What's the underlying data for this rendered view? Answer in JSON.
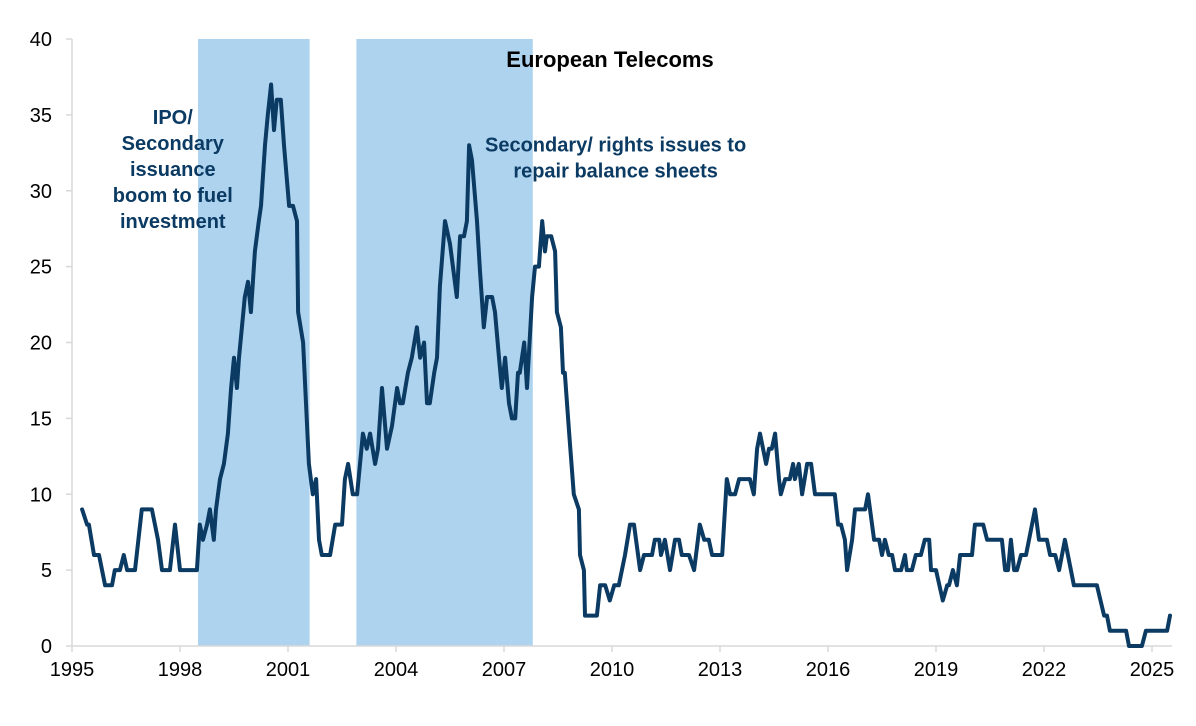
{
  "chart_data": {
    "type": "line",
    "title": "European Telecoms",
    "xlabel": "",
    "ylabel": "",
    "xlim": [
      1995,
      2025.5
    ],
    "ylim": [
      0,
      40
    ],
    "grid": false,
    "legend": "none",
    "x_ticks": [
      "1995",
      "1998",
      "2001",
      "2004",
      "2007",
      "2010",
      "2013",
      "2016",
      "2019",
      "2022",
      "2025"
    ],
    "x_tick_values": [
      1995,
      1998,
      2001,
      2004,
      2007,
      2010,
      2013,
      2016,
      2019,
      2022,
      2025
    ],
    "y_ticks": [
      "0",
      "5",
      "10",
      "15",
      "20",
      "25",
      "30",
      "35",
      "40"
    ],
    "y_tick_values": [
      0,
      5,
      10,
      15,
      20,
      25,
      30,
      35,
      40
    ],
    "colors": {
      "line": "#0b3a63",
      "shade": "#aed3ef",
      "annotation": "#0b3a63",
      "axis": "#d9d9d9"
    },
    "shaded_periods": [
      {
        "start": 1998.5,
        "end": 2001.6
      },
      {
        "start": 2002.9,
        "end": 2007.8
      }
    ],
    "annotations": [
      {
        "lines": [
          "IPO/",
          "Secondary",
          "issuance",
          "boom to fuel",
          "investment"
        ],
        "x": 1997.8,
        "y": 34.4
      },
      {
        "lines": [
          "Secondary/ rights issues to",
          "repair balance sheets"
        ],
        "x": 2010.1,
        "y": 32.6
      }
    ],
    "series": [
      {
        "name": "European Telecoms",
        "points": [
          [
            1995.28,
            9
          ],
          [
            1995.42,
            8
          ],
          [
            1995.47,
            8
          ],
          [
            1995.61,
            6
          ],
          [
            1995.75,
            6
          ],
          [
            1995.92,
            4
          ],
          [
            1996.11,
            4
          ],
          [
            1996.19,
            5
          ],
          [
            1996.33,
            5
          ],
          [
            1996.44,
            6
          ],
          [
            1996.53,
            5
          ],
          [
            1996.75,
            5
          ],
          [
            1996.94,
            9
          ],
          [
            1997.22,
            9
          ],
          [
            1997.39,
            7
          ],
          [
            1997.5,
            5
          ],
          [
            1997.72,
            5
          ],
          [
            1997.86,
            8
          ],
          [
            1998.0,
            5
          ],
          [
            1998.47,
            5
          ],
          [
            1998.55,
            8
          ],
          [
            1998.64,
            7
          ],
          [
            1998.75,
            8
          ],
          [
            1998.83,
            9
          ],
          [
            1998.94,
            7
          ],
          [
            1999.0,
            9
          ],
          [
            1999.11,
            11
          ],
          [
            1999.22,
            12
          ],
          [
            1999.33,
            14
          ],
          [
            1999.42,
            17
          ],
          [
            1999.5,
            19
          ],
          [
            1999.58,
            17
          ],
          [
            1999.64,
            19
          ],
          [
            1999.8,
            23
          ],
          [
            1999.89,
            24
          ],
          [
            1999.97,
            22
          ],
          [
            2000.08,
            26
          ],
          [
            2000.19,
            28
          ],
          [
            2000.25,
            29
          ],
          [
            2000.36,
            33
          ],
          [
            2000.44,
            35
          ],
          [
            2000.53,
            37
          ],
          [
            2000.61,
            34
          ],
          [
            2000.69,
            36
          ],
          [
            2000.8,
            36
          ],
          [
            2000.89,
            33
          ],
          [
            2001.03,
            29
          ],
          [
            2001.14,
            29
          ],
          [
            2001.25,
            28
          ],
          [
            2001.28,
            22
          ],
          [
            2001.42,
            20
          ],
          [
            2001.5,
            16
          ],
          [
            2001.58,
            12
          ],
          [
            2001.69,
            10
          ],
          [
            2001.78,
            11
          ],
          [
            2001.86,
            7
          ],
          [
            2001.94,
            6
          ],
          [
            2002.17,
            6
          ],
          [
            2002.31,
            8
          ],
          [
            2002.5,
            8
          ],
          [
            2002.58,
            11
          ],
          [
            2002.67,
            12
          ],
          [
            2002.8,
            10
          ],
          [
            2002.92,
            10
          ],
          [
            2003.08,
            14
          ],
          [
            2003.19,
            13
          ],
          [
            2003.28,
            14
          ],
          [
            2003.42,
            12
          ],
          [
            2003.5,
            13
          ],
          [
            2003.61,
            17
          ],
          [
            2003.75,
            13
          ],
          [
            2003.89,
            14.5
          ],
          [
            2004.03,
            17
          ],
          [
            2004.11,
            16
          ],
          [
            2004.19,
            16
          ],
          [
            2004.33,
            18
          ],
          [
            2004.44,
            19
          ],
          [
            2004.58,
            21
          ],
          [
            2004.67,
            19
          ],
          [
            2004.78,
            20
          ],
          [
            2004.86,
            16
          ],
          [
            2004.94,
            16
          ],
          [
            2005.06,
            18
          ],
          [
            2005.14,
            19
          ],
          [
            2005.22,
            23.7
          ],
          [
            2005.36,
            28
          ],
          [
            2005.5,
            26.5
          ],
          [
            2005.69,
            23
          ],
          [
            2005.78,
            27
          ],
          [
            2005.89,
            27
          ],
          [
            2005.97,
            28
          ],
          [
            2006.03,
            33
          ],
          [
            2006.11,
            32
          ],
          [
            2006.25,
            28
          ],
          [
            2006.33,
            24.8
          ],
          [
            2006.44,
            21
          ],
          [
            2006.53,
            23
          ],
          [
            2006.67,
            23
          ],
          [
            2006.75,
            22
          ],
          [
            2006.86,
            19
          ],
          [
            2006.94,
            17
          ],
          [
            2007.03,
            19
          ],
          [
            2007.14,
            16
          ],
          [
            2007.22,
            15
          ],
          [
            2007.31,
            15
          ],
          [
            2007.39,
            18
          ],
          [
            2007.44,
            18
          ],
          [
            2007.56,
            20
          ],
          [
            2007.64,
            17
          ],
          [
            2007.78,
            23
          ],
          [
            2007.86,
            25
          ],
          [
            2007.97,
            25
          ],
          [
            2008.06,
            28
          ],
          [
            2008.14,
            26
          ],
          [
            2008.19,
            27
          ],
          [
            2008.31,
            27
          ],
          [
            2008.42,
            26
          ],
          [
            2008.47,
            22
          ],
          [
            2008.58,
            21
          ],
          [
            2008.64,
            18
          ],
          [
            2008.69,
            18
          ],
          [
            2008.81,
            14
          ],
          [
            2008.94,
            10
          ],
          [
            2009.08,
            9
          ],
          [
            2009.11,
            6
          ],
          [
            2009.22,
            5
          ],
          [
            2009.25,
            2
          ],
          [
            2009.58,
            2
          ],
          [
            2009.67,
            4
          ],
          [
            2009.81,
            4
          ],
          [
            2009.94,
            3
          ],
          [
            2010.06,
            4
          ],
          [
            2010.19,
            4
          ],
          [
            2010.36,
            6
          ],
          [
            2010.5,
            8
          ],
          [
            2010.61,
            8
          ],
          [
            2010.78,
            5
          ],
          [
            2010.89,
            6
          ],
          [
            2011.11,
            6
          ],
          [
            2011.19,
            7
          ],
          [
            2011.31,
            7
          ],
          [
            2011.36,
            6
          ],
          [
            2011.47,
            7
          ],
          [
            2011.61,
            5
          ],
          [
            2011.75,
            7
          ],
          [
            2011.86,
            7
          ],
          [
            2011.94,
            6
          ],
          [
            2012.14,
            6
          ],
          [
            2012.28,
            5
          ],
          [
            2012.44,
            8
          ],
          [
            2012.56,
            7
          ],
          [
            2012.69,
            7
          ],
          [
            2012.78,
            6
          ],
          [
            2013.06,
            6
          ],
          [
            2013.19,
            11
          ],
          [
            2013.28,
            10
          ],
          [
            2013.42,
            10
          ],
          [
            2013.53,
            11
          ],
          [
            2013.83,
            11
          ],
          [
            2013.94,
            10
          ],
          [
            2014.03,
            13
          ],
          [
            2014.11,
            14
          ],
          [
            2014.28,
            12
          ],
          [
            2014.36,
            13
          ],
          [
            2014.44,
            13
          ],
          [
            2014.53,
            14
          ],
          [
            2014.64,
            11
          ],
          [
            2014.69,
            10
          ],
          [
            2014.81,
            11
          ],
          [
            2014.94,
            11
          ],
          [
            2015.03,
            12
          ],
          [
            2015.08,
            11
          ],
          [
            2015.19,
            12
          ],
          [
            2015.28,
            10
          ],
          [
            2015.42,
            12
          ],
          [
            2015.53,
            12
          ],
          [
            2015.64,
            10
          ],
          [
            2016.19,
            10
          ],
          [
            2016.28,
            8
          ],
          [
            2016.36,
            8
          ],
          [
            2016.47,
            7
          ],
          [
            2016.53,
            5
          ],
          [
            2016.67,
            7
          ],
          [
            2016.75,
            9
          ],
          [
            2017.03,
            9
          ],
          [
            2017.11,
            10
          ],
          [
            2017.28,
            7
          ],
          [
            2017.42,
            7
          ],
          [
            2017.5,
            6
          ],
          [
            2017.58,
            7
          ],
          [
            2017.69,
            6
          ],
          [
            2017.78,
            6
          ],
          [
            2017.86,
            5
          ],
          [
            2018.03,
            5
          ],
          [
            2018.14,
            6
          ],
          [
            2018.19,
            5
          ],
          [
            2018.33,
            5
          ],
          [
            2018.44,
            6
          ],
          [
            2018.58,
            6
          ],
          [
            2018.69,
            7
          ],
          [
            2018.81,
            7
          ],
          [
            2018.86,
            5
          ],
          [
            2019.0,
            5
          ],
          [
            2019.19,
            3
          ],
          [
            2019.31,
            4
          ],
          [
            2019.36,
            4
          ],
          [
            2019.47,
            5
          ],
          [
            2019.58,
            4
          ],
          [
            2019.67,
            6
          ],
          [
            2020.0,
            6
          ],
          [
            2020.08,
            8
          ],
          [
            2020.31,
            8
          ],
          [
            2020.42,
            7
          ],
          [
            2020.83,
            7
          ],
          [
            2020.92,
            5
          ],
          [
            2021.0,
            5
          ],
          [
            2021.08,
            7
          ],
          [
            2021.17,
            5
          ],
          [
            2021.25,
            5
          ],
          [
            2021.36,
            6
          ],
          [
            2021.5,
            6
          ],
          [
            2021.75,
            9
          ],
          [
            2021.86,
            7
          ],
          [
            2022.08,
            7
          ],
          [
            2022.17,
            6
          ],
          [
            2022.31,
            6
          ],
          [
            2022.42,
            5
          ],
          [
            2022.58,
            7
          ],
          [
            2022.83,
            4
          ],
          [
            2023.47,
            4
          ],
          [
            2023.67,
            2
          ],
          [
            2023.75,
            2
          ],
          [
            2023.83,
            1
          ],
          [
            2024.28,
            1
          ],
          [
            2024.36,
            0
          ],
          [
            2024.72,
            0
          ],
          [
            2024.83,
            1
          ],
          [
            2025.42,
            1
          ],
          [
            2025.5,
            2
          ]
        ]
      }
    ]
  }
}
